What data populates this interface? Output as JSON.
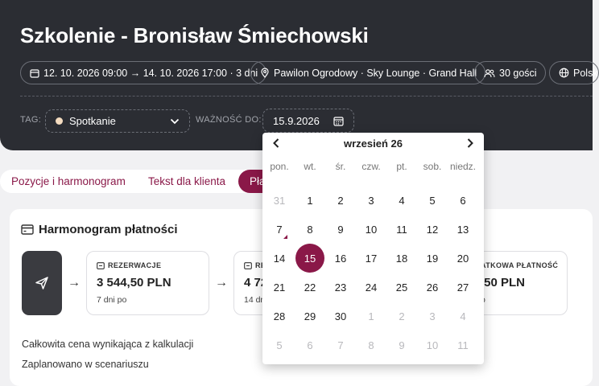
{
  "header": {
    "title": "Szkolenie - Bronisław Śmiechowski",
    "chips": {
      "dates": "12. 10. 2026 09:00 → 14. 10. 2026 17:00 · 3 dni",
      "venue": "Pawilon Ogrodowy · Sky Lounge · Grand Hall",
      "guests": "30 gości",
      "language": "Polsk"
    },
    "tag_label": "TAG:",
    "tag_value": "Spotkanie",
    "validity_label": "WAŻNOŚĆ DO:",
    "validity_value": "15.9.2026"
  },
  "tabs": {
    "items": [
      "Pozycje i harmonogram",
      "Tekst dla klienta",
      "Pła"
    ]
  },
  "payment": {
    "title": "Harmonogram płatności",
    "steps": [
      {
        "label": "REZERWACJE",
        "value": "3 544,50 PLN",
        "sub": "7 dni po"
      },
      {
        "label": "RE",
        "value": "4 72",
        "sub": "14 dn"
      },
      {
        "label": "ATKOWA PŁATNOŚĆ",
        "value": ",50 PLN",
        "sub": "o"
      }
    ],
    "info": [
      "Całkowita cena wynikająca z kalkulacji",
      "Zaplanowano w scenariuszu"
    ]
  },
  "calendar": {
    "month_title": "wrzesień 26",
    "weekdays": [
      "pon.",
      "wt.",
      "śr.",
      "czw.",
      "pt.",
      "sob.",
      "niedz."
    ],
    "weeks": [
      [
        "31",
        "1",
        "2",
        "3",
        "4",
        "5",
        "6"
      ],
      [
        "7",
        "8",
        "9",
        "10",
        "11",
        "12",
        "13"
      ],
      [
        "14",
        "15",
        "16",
        "17",
        "18",
        "19",
        "20"
      ],
      [
        "21",
        "22",
        "23",
        "24",
        "25",
        "26",
        "27"
      ],
      [
        "28",
        "29",
        "30",
        "1",
        "2",
        "3",
        "4"
      ],
      [
        "5",
        "6",
        "7",
        "8",
        "9",
        "10",
        "11"
      ]
    ],
    "selected_day": "15",
    "marked_day": "7"
  },
  "colors": {
    "header_bg": "#2b2d33",
    "accent": "#8a1848"
  }
}
